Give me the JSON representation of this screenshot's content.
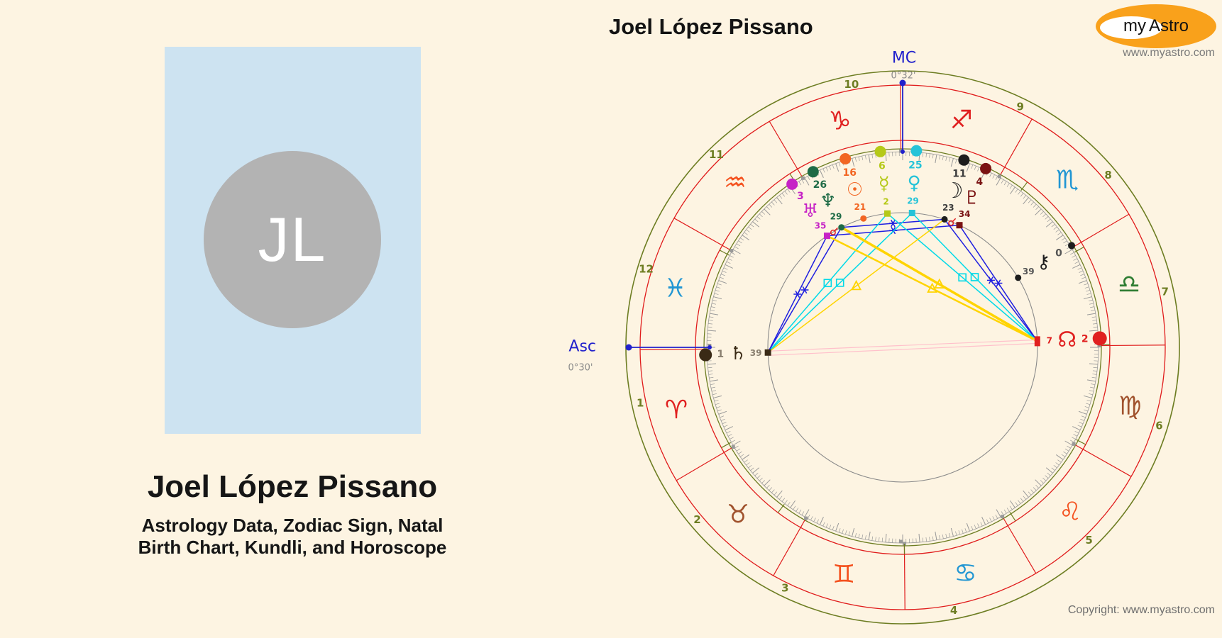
{
  "header": {
    "title": "Joel López Pissano"
  },
  "logo": {
    "brand_my": "my",
    "brand_astro": "Astro",
    "site_url": "www.myastro.com"
  },
  "footer": {
    "copyright": "Copyright: www.myastro.com"
  },
  "profile": {
    "initials": "JL",
    "name": "Joel López Pissano",
    "subtitle_line1": "Astrology Data, Zodiac Sign, Natal",
    "subtitle_line2": "Birth Chart, Kundli, and Horoscope"
  },
  "chart": {
    "labels": {
      "mc": "MC",
      "mc_degree": "0°32'",
      "asc": "Asc",
      "asc_degree": "0°30'"
    },
    "colors": {
      "olive": "#6d7d22",
      "red_ring": "#e01b1b",
      "tick": "#999999",
      "aspect_circle": "#8a8a8a",
      "axis_blue": "#2121cc",
      "degree_gray": "#8a8a8a",
      "sextile": "#1e1ee0",
      "square": "#00d9e8",
      "trine": "#ffd400",
      "opposition": "#ffc0cb",
      "conjunction": "#e02020"
    },
    "signs": [
      {
        "name": "libra",
        "glyph": "♎",
        "angle": 15.5,
        "color": "#2e7d32"
      },
      {
        "name": "scorpio",
        "glyph": "♏",
        "angle": 45.5,
        "color": "#2196d3"
      },
      {
        "name": "sagittarius",
        "glyph": "♐",
        "angle": 75.5,
        "color": "#e02020"
      },
      {
        "name": "capricorn",
        "glyph": "♑",
        "angle": 105.5,
        "color": "#e02020"
      },
      {
        "name": "aquarius",
        "glyph": "♒",
        "angle": 135.5,
        "color": "#f4511e"
      },
      {
        "name": "pisces",
        "glyph": "♓",
        "angle": 165.5,
        "color": "#2196d3"
      },
      {
        "name": "aries",
        "glyph": "♈",
        "angle": 195.5,
        "color": "#e02020"
      },
      {
        "name": "taurus",
        "glyph": "♉",
        "angle": 225.5,
        "color": "#a0522d"
      },
      {
        "name": "gemini",
        "glyph": "♊",
        "angle": 255.5,
        "color": "#f4511e"
      },
      {
        "name": "cancer",
        "glyph": "♋",
        "angle": 285.5,
        "color": "#2196d3"
      },
      {
        "name": "leo",
        "glyph": "♌",
        "angle": 315.5,
        "color": "#f4511e"
      },
      {
        "name": "virgo",
        "glyph": "♍",
        "angle": 345.5,
        "color": "#a0522d"
      }
    ],
    "sign_boundary_offset": 0.5,
    "houses": [
      {
        "num": "1",
        "label_angle": 192
      },
      {
        "num": "2",
        "label_angle": 220
      },
      {
        "num": "3",
        "label_angle": 244
      },
      {
        "num": "4",
        "label_angle": 281
      },
      {
        "num": "5",
        "label_angle": 314
      },
      {
        "num": "6",
        "label_angle": 343
      },
      {
        "num": "7",
        "label_angle": 12
      },
      {
        "num": "8",
        "label_angle": 40
      },
      {
        "num": "9",
        "label_angle": 64
      },
      {
        "num": "10",
        "label_angle": 101
      },
      {
        "num": "11",
        "label_angle": 134
      },
      {
        "num": "12",
        "label_angle": 163
      }
    ],
    "house_cusp_angles": [
      123,
      152,
      209,
      233,
      270.5,
      303,
      332,
      0.8,
      29,
      53
    ],
    "planets": [
      {
        "name": "saturn",
        "glyph": "♄",
        "deg": "1",
        "min": "39",
        "angle": 182.2,
        "color": "#3a2a16",
        "num_color": "#8a8070",
        "dot_r": 9,
        "marker": "square"
      },
      {
        "name": "uranus",
        "glyph": "♅",
        "deg": "3",
        "min": "35",
        "angle": 124.1,
        "color": "#c622c6",
        "num_color": "#c622c6",
        "dot_r": 8,
        "marker": "square"
      },
      {
        "name": "neptune",
        "glyph": "♆",
        "deg": "26",
        "min": "29",
        "angle": 117.0,
        "color": "#1e6b46",
        "num_color": "#1e6b46",
        "dot_r": 8,
        "marker": "circle"
      },
      {
        "name": "sun",
        "glyph": "☉",
        "deg": "16",
        "min": "21",
        "angle": 106.9,
        "color": "#f26522",
        "num_color": "#f26522",
        "dot_r": 8,
        "marker": "circle"
      },
      {
        "name": "mercury",
        "glyph": "☿",
        "deg": "6",
        "min": "2",
        "angle": 96.5,
        "color": "#b5c918",
        "num_color": "#b5c918",
        "dot_r": 8,
        "marker": "square"
      },
      {
        "name": "venus",
        "glyph": "♀",
        "deg": "25",
        "min": "29",
        "angle": 86.0,
        "color": "#25c3d8",
        "num_color": "#25c3d8",
        "dot_r": 8,
        "marker": "square"
      },
      {
        "name": "moon",
        "glyph": "☽",
        "deg": "11",
        "min": "23",
        "angle": 71.9,
        "color": "#1d1d1d",
        "num_color": "#3c3c3c",
        "dot_r": 8,
        "marker": "circle"
      },
      {
        "name": "pluto",
        "glyph": "♇",
        "deg": "4",
        "min": "34",
        "angle": 65.1,
        "color": "#7a1212",
        "num_color": "#7a1212",
        "dot_r": 8,
        "marker": "square"
      },
      {
        "name": "chiron",
        "glyph": "⚷",
        "deg": "0",
        "min": "39",
        "angle": 31.1,
        "color": "#1d1d1d",
        "num_color": "#555555",
        "dot_r": 5,
        "marker": "circle"
      },
      {
        "name": "node",
        "glyph": "☊",
        "deg": "2",
        "min": "7",
        "angle": 2.6,
        "color": "#e02020",
        "num_color": "#e02020",
        "dot_r": 10,
        "marker": "rect"
      }
    ],
    "aspects": [
      {
        "a": "saturn",
        "b": "uranus",
        "type": "sextile",
        "w": 1.5
      },
      {
        "a": "saturn",
        "b": "neptune",
        "type": "sextile",
        "w": 1.5
      },
      {
        "a": "uranus",
        "b": "pluto",
        "type": "sextile",
        "w": 1.5
      },
      {
        "a": "neptune",
        "b": "moon",
        "type": "sextile",
        "w": 1.5
      },
      {
        "a": "pluto",
        "b": "node",
        "type": "sextile",
        "w": 1.5
      },
      {
        "a": "moon",
        "b": "node",
        "type": "sextile",
        "w": 1.5
      },
      {
        "a": "mercury",
        "b": "saturn",
        "type": "square",
        "w": 1.5
      },
      {
        "a": "venus",
        "b": "saturn",
        "type": "square",
        "w": 1.5
      },
      {
        "a": "mercury",
        "b": "node",
        "type": "square",
        "w": 1.5
      },
      {
        "a": "venus",
        "b": "node",
        "type": "square",
        "w": 1.5
      },
      {
        "a": "uranus",
        "b": "node",
        "type": "trine",
        "w": 2.5
      },
      {
        "a": "neptune",
        "b": "node",
        "type": "trine",
        "w": 3.5
      },
      {
        "a": "moon",
        "b": "saturn",
        "type": "trine",
        "w": 1.5
      },
      {
        "a": "saturn",
        "b": "node",
        "type": "opposition",
        "w": 1.2
      },
      {
        "a": "uranus",
        "b": "neptune",
        "type": "conjunction"
      },
      {
        "a": "moon",
        "b": "pluto",
        "type": "conjunction"
      }
    ]
  }
}
